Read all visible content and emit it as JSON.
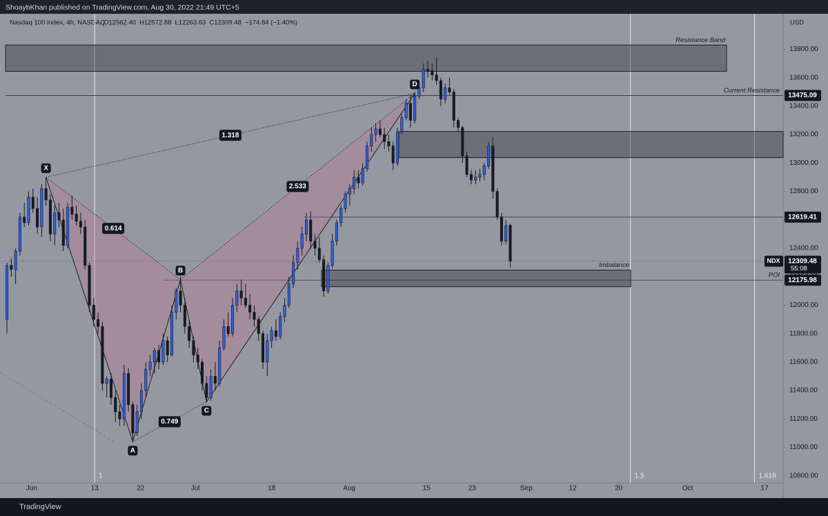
{
  "page": {
    "publisher": "ShoaybKhan published on TradingView.com, Aug 30, 2022 21:49 UTC+5",
    "footer": "TradingView"
  },
  "chart_data": {
    "type": "candlestick",
    "title": "Nasdaq 100 Index, 4h, NASDAQ",
    "legend_values": [
      "O12562.40",
      "H12572.88",
      "L12263.63",
      "C12309.48",
      "−174.84 (−1.40%)"
    ],
    "currency": "USD",
    "symbol": "NDX",
    "countdown": "55:08",
    "up_color": "#2f5fe0",
    "down_color": "#161a22",
    "background": "#9598a1",
    "grid": false,
    "ylim": [
      10750,
      14040
    ],
    "xlim": [
      -1.6,
      178.9
    ],
    "yticks": [
      {
        "value": 10800,
        "label": "10800.00"
      },
      {
        "value": 11000,
        "label": "11000.00"
      },
      {
        "value": 11200,
        "label": "11200.00"
      },
      {
        "value": 11400,
        "label": "11400.00"
      },
      {
        "value": 11600,
        "label": "11600.00"
      },
      {
        "value": 11800,
        "label": "11800.00"
      },
      {
        "value": 12000,
        "label": "12000.00"
      },
      {
        "value": 12200,
        "label": "12200.00"
      },
      {
        "value": 12400,
        "label": "12400.00"
      },
      {
        "value": 12600,
        "label": "12600.00"
      },
      {
        "value": 12800,
        "label": "12800.00"
      },
      {
        "value": 13000,
        "label": "13000.00"
      },
      {
        "value": 13200,
        "label": "13200.00"
      },
      {
        "value": 13400,
        "label": "13400.00"
      },
      {
        "value": 13600,
        "label": "13600.00"
      },
      {
        "value": 13800,
        "label": "13800.00"
      }
    ],
    "xticks": [
      {
        "value": 5.7,
        "label": "Jun"
      },
      {
        "value": 20.2,
        "label": "13"
      },
      {
        "value": 30.8,
        "label": "22"
      },
      {
        "value": 43.4,
        "label": "Jul"
      },
      {
        "value": 61.0,
        "label": "18"
      },
      {
        "value": 78.9,
        "label": "Aug"
      },
      {
        "value": 96.7,
        "label": "15"
      },
      {
        "value": 107.2,
        "label": "23"
      },
      {
        "value": 119.7,
        "label": "Sep"
      },
      {
        "value": 130.4,
        "label": "12"
      },
      {
        "value": 141.0,
        "label": "20"
      },
      {
        "value": 156.9,
        "label": "Oct"
      },
      {
        "value": 174.6,
        "label": "17"
      }
    ],
    "fib_time": [
      {
        "value": 20.2,
        "label": "1"
      },
      {
        "value": 143.7,
        "label": "1.5"
      },
      {
        "value": 172.3,
        "label": "1.618"
      }
    ],
    "levels": [
      {
        "value": 13475.09,
        "label": "Current Resistance"
      },
      {
        "value": 12619.41
      },
      {
        "value": 12175.98,
        "label": "POI"
      }
    ],
    "zones": [
      {
        "label": "Resistance Band",
        "low": 13645,
        "high": 13830
      },
      {
        "low": 13038,
        "high": 13222
      },
      {
        "label": "Imbalance",
        "low": 12130,
        "high": 12247
      }
    ],
    "pattern": {
      "points": [
        {
          "name": "X",
          "x": 9,
          "y": 12900
        },
        {
          "name": "A",
          "x": 29,
          "y": 11040
        },
        {
          "name": "B",
          "x": 40,
          "y": 12180
        },
        {
          "name": "C",
          "x": 46,
          "y": 11320
        },
        {
          "name": "D",
          "x": 94,
          "y": 13490
        }
      ],
      "ratios": [
        0.614,
        1.318,
        2.533,
        0.749
      ]
    },
    "candles": [
      [
        11900,
        12300,
        11800,
        12280
      ],
      [
        12280,
        12330,
        12200,
        12250
      ],
      [
        12250,
        12400,
        12150,
        12380
      ],
      [
        12380,
        12650,
        12350,
        12620
      ],
      [
        12620,
        12720,
        12550,
        12580
      ],
      [
        12580,
        12800,
        12560,
        12760
      ],
      [
        12760,
        12820,
        12650,
        12680
      ],
      [
        12680,
        12760,
        12500,
        12550
      ],
      [
        12550,
        12850,
        12480,
        12820
      ],
      [
        12820,
        12900,
        12700,
        12740
      ],
      [
        12740,
        12780,
        12450,
        12500
      ],
      [
        12500,
        12700,
        12420,
        12650
      ],
      [
        12650,
        12720,
        12550,
        12600
      ],
      [
        12600,
        12680,
        12380,
        12420
      ],
      [
        12420,
        12720,
        12400,
        12690
      ],
      [
        12690,
        12770,
        12600,
        12640
      ],
      [
        12640,
        12700,
        12560,
        12590
      ],
      [
        12590,
        12650,
        12500,
        12550
      ],
      [
        12550,
        12600,
        12250,
        12280
      ],
      [
        12280,
        12300,
        11950,
        12000
      ],
      [
        12000,
        12050,
        11850,
        11900
      ],
      [
        11900,
        11950,
        11800,
        11850
      ],
      [
        11850,
        11880,
        11400,
        11450
      ],
      [
        11450,
        11500,
        11350,
        11480
      ],
      [
        11480,
        11520,
        11300,
        11350
      ],
      [
        11350,
        11400,
        11180,
        11250
      ],
      [
        11250,
        11300,
        11150,
        11200
      ],
      [
        11200,
        11580,
        11150,
        11520
      ],
      [
        11520,
        11560,
        11250,
        11300
      ],
      [
        11300,
        11320,
        11040,
        11100
      ],
      [
        11100,
        11300,
        11080,
        11250
      ],
      [
        11250,
        11450,
        11200,
        11400
      ],
      [
        11400,
        11600,
        11350,
        11550
      ],
      [
        11550,
        11650,
        11500,
        11600
      ],
      [
        11600,
        11700,
        11520,
        11680
      ],
      [
        11680,
        11720,
        11550,
        11600
      ],
      [
        11600,
        11800,
        11580,
        11750
      ],
      [
        11750,
        11780,
        11600,
        11650
      ],
      [
        11650,
        12000,
        11640,
        11950
      ],
      [
        11950,
        12120,
        11900,
        12100
      ],
      [
        12100,
        12200,
        11950,
        12000
      ],
      [
        12000,
        12050,
        11800,
        11850
      ],
      [
        11850,
        11900,
        11700,
        11750
      ],
      [
        11750,
        11780,
        11600,
        11650
      ],
      [
        11650,
        11700,
        11550,
        11600
      ],
      [
        11600,
        11620,
        11400,
        11450
      ],
      [
        11450,
        11500,
        11320,
        11350
      ],
      [
        11350,
        11550,
        11330,
        11500
      ],
      [
        11500,
        11600,
        11400,
        11450
      ],
      [
        11450,
        11750,
        11430,
        11700
      ],
      [
        11700,
        11900,
        11680,
        11850
      ],
      [
        11850,
        11950,
        11780,
        11800
      ],
      [
        11800,
        12050,
        11780,
        12000
      ],
      [
        12000,
        12150,
        11950,
        12100
      ],
      [
        12100,
        12180,
        12000,
        12050
      ],
      [
        12050,
        12150,
        11980,
        12000
      ],
      [
        12000,
        12080,
        11900,
        11950
      ],
      [
        11950,
        12000,
        11850,
        11900
      ],
      [
        11900,
        11920,
        11750,
        11800
      ],
      [
        11800,
        11820,
        11550,
        11600
      ],
      [
        11600,
        11800,
        11500,
        11750
      ],
      [
        11750,
        11850,
        11700,
        11820
      ],
      [
        11820,
        11900,
        11750,
        11780
      ],
      [
        11780,
        11950,
        11760,
        11920
      ],
      [
        11920,
        12050,
        11880,
        12000
      ],
      [
        12000,
        12200,
        11980,
        12150
      ],
      [
        12150,
        12350,
        12120,
        12300
      ],
      [
        12300,
        12450,
        12250,
        12400
      ],
      [
        12400,
        12550,
        12350,
        12500
      ],
      [
        12500,
        12650,
        12450,
        12600
      ],
      [
        12600,
        12660,
        12400,
        12450
      ],
      [
        12450,
        12500,
        12350,
        12400
      ],
      [
        12400,
        12480,
        12300,
        12320
      ],
      [
        12320,
        12350,
        12060,
        12100
      ],
      [
        12100,
        12300,
        12080,
        12280
      ],
      [
        12280,
        12500,
        12260,
        12450
      ],
      [
        12450,
        12600,
        12420,
        12580
      ],
      [
        12580,
        12700,
        12550,
        12680
      ],
      [
        12680,
        12800,
        12650,
        12780
      ],
      [
        12780,
        12850,
        12700,
        12820
      ],
      [
        12820,
        12950,
        12780,
        12900
      ],
      [
        12900,
        12950,
        12820,
        12860
      ],
      [
        12860,
        13000,
        12840,
        12960
      ],
      [
        12960,
        13150,
        12940,
        13120
      ],
      [
        13120,
        13250,
        13080,
        13200
      ],
      [
        13200,
        13280,
        13150,
        13240
      ],
      [
        13240,
        13300,
        13180,
        13200
      ],
      [
        13200,
        13250,
        13100,
        13150
      ],
      [
        13150,
        13200,
        13080,
        13120
      ],
      [
        13120,
        13150,
        12950,
        13000
      ],
      [
        13000,
        13250,
        12980,
        13220
      ],
      [
        13220,
        13350,
        13200,
        13320
      ],
      [
        13320,
        13450,
        13300,
        13420
      ],
      [
        13420,
        13480,
        13250,
        13300
      ],
      [
        13300,
        13500,
        13280,
        13470
      ],
      [
        13470,
        13550,
        13450,
        13530
      ],
      [
        13530,
        13700,
        13500,
        13660
      ],
      [
        13660,
        13720,
        13600,
        13650
      ],
      [
        13650,
        13700,
        13580,
        13620
      ],
      [
        13620,
        13740,
        13550,
        13580
      ],
      [
        13580,
        13600,
        13400,
        13450
      ],
      [
        13450,
        13560,
        13420,
        13530
      ],
      [
        13530,
        13600,
        13480,
        13500
      ],
      [
        13500,
        13520,
        13250,
        13300
      ],
      [
        13300,
        13320,
        13220,
        13250
      ],
      [
        13250,
        13260,
        13000,
        13050
      ],
      [
        13050,
        13080,
        12900,
        12920
      ],
      [
        12920,
        12950,
        12850,
        12880
      ],
      [
        12880,
        12950,
        12850,
        12900
      ],
      [
        12900,
        12960,
        12870,
        12920
      ],
      [
        12920,
        13000,
        12880,
        12980
      ],
      [
        12980,
        13150,
        12960,
        13120
      ],
      [
        13120,
        13180,
        12750,
        12800
      ],
      [
        12800,
        12820,
        12600,
        12620
      ],
      [
        12620,
        12650,
        12420,
        12450
      ],
      [
        12450,
        12600,
        12430,
        12560
      ],
      [
        12562.4,
        12572.88,
        12263.63,
        12309.48
      ]
    ]
  }
}
